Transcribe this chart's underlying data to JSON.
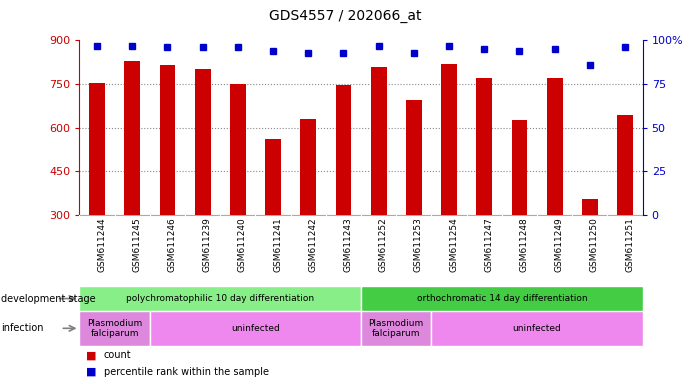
{
  "title": "GDS4557 / 202066_at",
  "categories": [
    "GSM611244",
    "GSM611245",
    "GSM611246",
    "GSM611239",
    "GSM611240",
    "GSM611241",
    "GSM611242",
    "GSM611243",
    "GSM611252",
    "GSM611253",
    "GSM611254",
    "GSM611247",
    "GSM611248",
    "GSM611249",
    "GSM611250",
    "GSM611251"
  ],
  "count_values": [
    755,
    830,
    815,
    800,
    750,
    560,
    630,
    745,
    810,
    695,
    820,
    770,
    625,
    770,
    355,
    645
  ],
  "percentile_values": [
    97,
    97,
    96,
    96,
    96,
    94,
    93,
    93,
    97,
    93,
    97,
    95,
    94,
    95,
    86,
    96
  ],
  "ylim_left": [
    300,
    900
  ],
  "ylim_right": [
    0,
    100
  ],
  "yticks_left": [
    300,
    450,
    600,
    750,
    900
  ],
  "yticks_right": [
    0,
    25,
    50,
    75,
    100
  ],
  "bar_color": "#cc0000",
  "dot_color": "#0000cc",
  "dev_stage_groups": [
    {
      "label": "polychromatophilic 10 day differentiation",
      "start": 0,
      "end": 8,
      "color": "#88ee88"
    },
    {
      "label": "orthochromatic 14 day differentiation",
      "start": 8,
      "end": 16,
      "color": "#44cc44"
    }
  ],
  "infection_groups": [
    {
      "label": "Plasmodium\nfalciparum",
      "start": 0,
      "end": 2,
      "color": "#dd88dd"
    },
    {
      "label": "uninfected",
      "start": 2,
      "end": 8,
      "color": "#ee88ee"
    },
    {
      "label": "Plasmodium\nfalciparum",
      "start": 8,
      "end": 10,
      "color": "#dd88dd"
    },
    {
      "label": "uninfected",
      "start": 10,
      "end": 16,
      "color": "#ee88ee"
    }
  ],
  "legend_count_label": "count",
  "legend_pct_label": "percentile rank within the sample",
  "left_axis_color": "#cc0000",
  "right_axis_color": "#0000cc",
  "background_color": "#ffffff",
  "grid_color": "#888888",
  "subplot_label_dev": "development stage",
  "subplot_label_inf": "infection"
}
